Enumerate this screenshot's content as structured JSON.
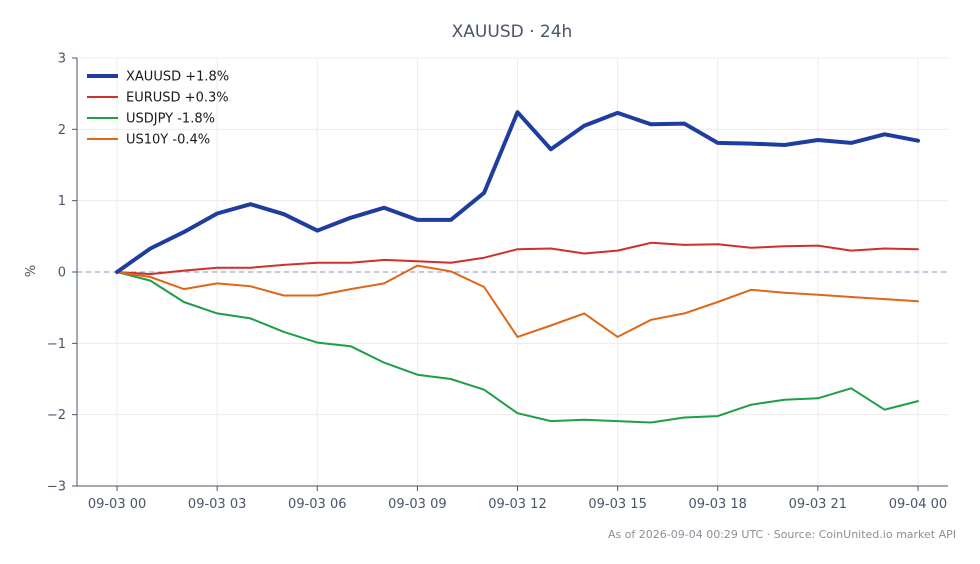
{
  "chart_data": {
    "type": "line",
    "title": "XAUUSD · 24h",
    "xlabel": "",
    "ylabel": "%",
    "ylim": [
      -3,
      3
    ],
    "xlim": [
      -1.2,
      24.9
    ],
    "yticks": [
      -3,
      -2,
      -1,
      0,
      1,
      2,
      3
    ],
    "ytick_labels": [
      "−3",
      "−2",
      "−1",
      "0",
      "1",
      "2",
      "3"
    ],
    "xtick_positions": [
      0,
      3,
      6,
      9,
      12,
      15,
      18,
      21,
      24
    ],
    "xtick_labels": [
      "09-03 00",
      "09-03 03",
      "09-03 06",
      "09-03 09",
      "09-03 12",
      "09-03 15",
      "09-03 18",
      "09-03 21",
      "09-04 00"
    ],
    "x": [
      0,
      1,
      2,
      3,
      4,
      5,
      6,
      7,
      8,
      9,
      10,
      11,
      12,
      13,
      14,
      15,
      16,
      17,
      18,
      19,
      20,
      21,
      22,
      23,
      24
    ],
    "zero_line": true,
    "grid": true,
    "legend_position": "top-left",
    "series": [
      {
        "name": "XAUUSD +1.8%",
        "color": "#1f3d9e",
        "emphasis": true,
        "values": [
          0,
          0.33,
          0.56,
          0.82,
          0.95,
          0.81,
          0.58,
          0.76,
          0.9,
          0.73,
          0.73,
          1.11,
          2.24,
          1.72,
          2.05,
          2.23,
          2.07,
          2.08,
          1.81,
          1.8,
          1.78,
          1.85,
          1.81,
          1.93,
          1.84
        ]
      },
      {
        "name": "EURUSD +0.3%",
        "color": "#d1302a",
        "values": [
          0,
          -0.03,
          0.02,
          0.06,
          0.06,
          0.1,
          0.13,
          0.13,
          0.17,
          0.15,
          0.13,
          0.2,
          0.32,
          0.33,
          0.26,
          0.3,
          0.41,
          0.38,
          0.39,
          0.34,
          0.36,
          0.37,
          0.3,
          0.33,
          0.32
        ]
      },
      {
        "name": "USDJPY -1.8%",
        "color": "#1f9e4a",
        "values": [
          0,
          -0.12,
          -0.42,
          -0.58,
          -0.65,
          -0.84,
          -0.99,
          -1.04,
          -1.27,
          -1.44,
          -1.5,
          -1.65,
          -1.98,
          -2.09,
          -2.07,
          -2.09,
          -2.11,
          -2.04,
          -2.02,
          -1.86,
          -1.79,
          -1.77,
          -1.63,
          -1.93,
          -1.81
        ]
      },
      {
        "name": "US10Y -0.4%",
        "color": "#e0661a",
        "values": [
          0,
          -0.07,
          -0.24,
          -0.16,
          -0.2,
          -0.33,
          -0.33,
          -0.24,
          -0.16,
          0.09,
          0.01,
          -0.21,
          -0.91,
          -0.75,
          -0.58,
          -0.91,
          -0.67,
          -0.58,
          -0.42,
          -0.25,
          -0.29,
          -0.32,
          -0.35,
          -0.38,
          -0.41
        ]
      }
    ],
    "footer": "As of 2026-09-04 00:29 UTC · Source: CoinUnited.io market API"
  }
}
